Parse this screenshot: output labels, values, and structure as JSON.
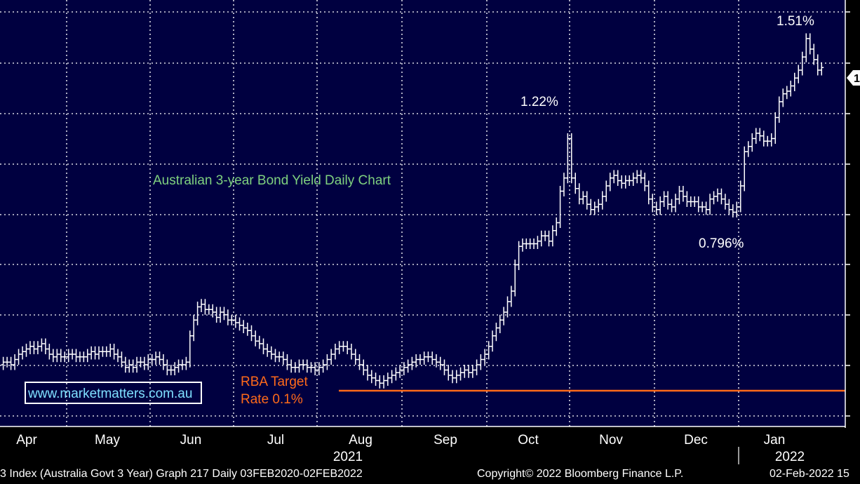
{
  "chart_data": {
    "type": "bar",
    "style": "ohlc",
    "title": "Australian 3-year Bond Yield Daily Chart",
    "title_color": "#7fd17f",
    "series_color": "#ffffff",
    "background": "#000040",
    "gridlines": "dotted",
    "x_tick_labels": [
      "Apr",
      "May",
      "Jun",
      "Jul",
      "Aug",
      "Sep",
      "Oct",
      "Nov",
      "Dec",
      "Jan"
    ],
    "year_labels": [
      "2021",
      "2022"
    ],
    "annotations": {
      "high_2021": "1.22%",
      "low_dec": "0.796%",
      "high_2022": "1.51%",
      "last_value_badge": "1"
    },
    "rba_target": {
      "label_line1": "RBA Target",
      "label_line2": "Rate 0.1%",
      "value": 0.1,
      "color": "#ff6a1a"
    },
    "watermark": "www.marketmatters.com.au",
    "ylim": [
      0.0,
      1.6
    ],
    "daily_closes": {
      "Apr": [
        0.23,
        0.24,
        0.23,
        0.24,
        0.25,
        0.25,
        0.24,
        0.26,
        0.28,
        0.29,
        0.3,
        0.31,
        0.3,
        0.31,
        0.32,
        0.3,
        0.28,
        0.27,
        0.28,
        0.27,
        0.27
      ],
      "May": [
        0.28,
        0.28,
        0.27,
        0.27,
        0.27,
        0.28,
        0.29,
        0.28,
        0.29,
        0.29,
        0.29,
        0.3,
        0.28,
        0.27,
        0.25,
        0.23,
        0.24,
        0.23,
        0.25,
        0.25,
        0.24,
        0.26
      ],
      "Jun": [
        0.26,
        0.27,
        0.26,
        0.24,
        0.22,
        0.22,
        0.23,
        0.24,
        0.24,
        0.25,
        0.35,
        0.41,
        0.46,
        0.47,
        0.45,
        0.45,
        0.44,
        0.42,
        0.44,
        0.43,
        0.41,
        0.41
      ],
      "Jul": [
        0.4,
        0.39,
        0.38,
        0.37,
        0.35,
        0.33,
        0.32,
        0.3,
        0.29,
        0.28,
        0.27,
        0.27,
        0.26,
        0.24,
        0.23,
        0.23,
        0.24,
        0.24,
        0.23,
        0.23,
        0.22
      ],
      "Aug": [
        0.23,
        0.24,
        0.26,
        0.28,
        0.3,
        0.31,
        0.31,
        0.3,
        0.28,
        0.26,
        0.24,
        0.22,
        0.2,
        0.19,
        0.18,
        0.17,
        0.18,
        0.19,
        0.2,
        0.21,
        0.22
      ],
      "Sep": [
        0.23,
        0.24,
        0.25,
        0.26,
        0.26,
        0.27,
        0.27,
        0.26,
        0.25,
        0.24,
        0.22,
        0.2,
        0.19,
        0.2,
        0.21,
        0.22,
        0.21,
        0.22,
        0.24,
        0.26,
        0.28
      ],
      "Oct": [
        0.31,
        0.35,
        0.38,
        0.41,
        0.44,
        0.48,
        0.52,
        0.62,
        0.69,
        0.7,
        0.7,
        0.7,
        0.7,
        0.71,
        0.73,
        0.73,
        0.71,
        0.75,
        0.78,
        0.9,
        0.95,
        1.1
      ],
      "Nov": [
        0.95,
        0.91,
        0.87,
        0.88,
        0.85,
        0.83,
        0.84,
        0.85,
        0.88,
        0.92,
        0.95,
        0.96,
        0.94,
        0.93,
        0.94,
        0.94,
        0.95,
        0.96,
        0.95,
        0.92,
        0.87,
        0.84
      ],
      "Dec": [
        0.83,
        0.86,
        0.88,
        0.85,
        0.84,
        0.87,
        0.9,
        0.88,
        0.86,
        0.86,
        0.86,
        0.84,
        0.84,
        0.83,
        0.87,
        0.88,
        0.89,
        0.87,
        0.85,
        0.83,
        0.82,
        0.84
      ],
      "Jan": [
        0.92,
        1.05,
        1.07,
        1.1,
        1.12,
        1.11,
        1.09,
        1.09,
        1.1,
        1.18,
        1.24,
        1.27,
        1.28,
        1.3,
        1.33,
        1.36,
        1.41,
        1.48,
        1.44,
        1.4,
        1.36,
        1.37
      ]
    }
  },
  "footer": {
    "left_text": "3 Index (Australia Govt 3 Year) Graph 217  Daily 03FEB2020-02FEB2022",
    "copyright": "Copyright© 2022 Bloomberg Finance L.P.",
    "date_text": "02-Feb-2022 15"
  }
}
